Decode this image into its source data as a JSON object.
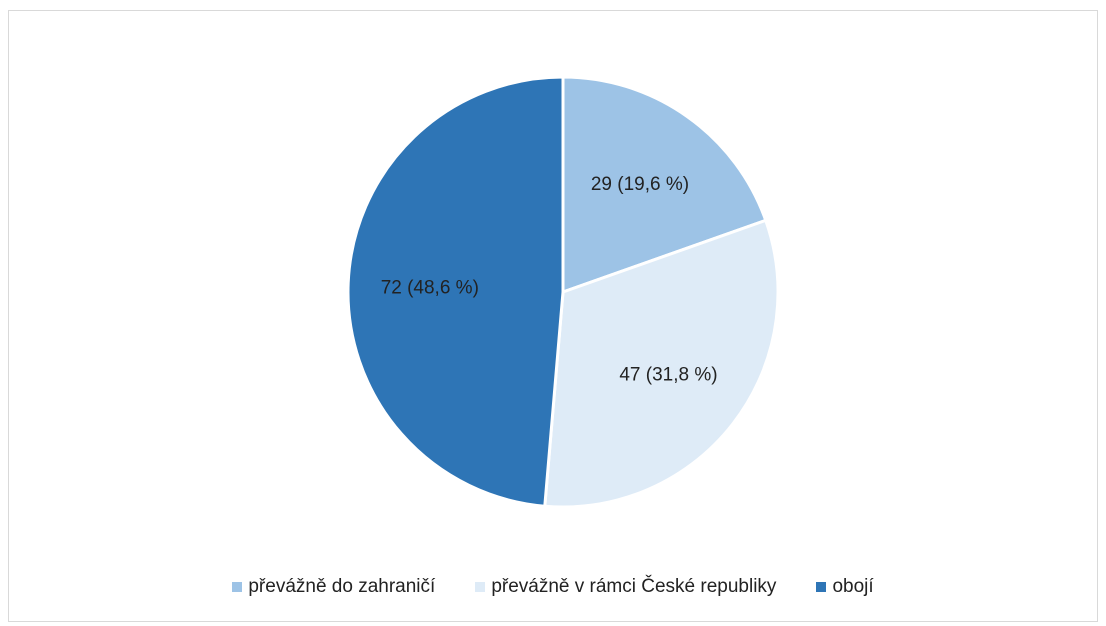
{
  "chart_data": {
    "type": "pie",
    "categories": [
      "převážně do zahraničí",
      "převážně v rámci České republiky",
      "obojí"
    ],
    "values": [
      29,
      47,
      72
    ],
    "percent_labels": [
      "29 (19,6 %)",
      "47 (31,8 %)",
      "72 (48,6 %)"
    ],
    "colors": [
      "#9dc3e6",
      "#deebf7",
      "#2e75b6"
    ],
    "legend_position": "bottom"
  }
}
